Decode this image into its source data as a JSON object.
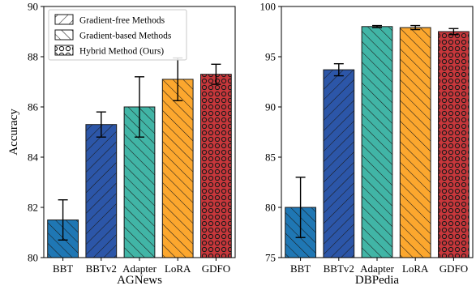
{
  "chart_data": [
    {
      "type": "bar",
      "xlabel": "AGNews",
      "ylabel": "Accuracy",
      "categories": [
        "BBT",
        "BBTv2",
        "Adapter",
        "LoRA",
        "GDFO"
      ],
      "values": [
        81.5,
        85.3,
        86.0,
        87.1,
        87.3
      ],
      "errors": [
        0.8,
        0.5,
        1.2,
        0.85,
        0.4
      ],
      "ylim": [
        80,
        90
      ],
      "yticks": [
        "80",
        "82",
        "84",
        "86",
        "88",
        "90"
      ],
      "legend": "top-left",
      "grid": false
    },
    {
      "type": "bar",
      "xlabel": "DBPedia",
      "ylabel": "",
      "categories": [
        "BBT",
        "BBTv2",
        "Adapter",
        "LoRA",
        "GDFO"
      ],
      "values": [
        80.0,
        93.7,
        98.0,
        97.9,
        97.5
      ],
      "errors": [
        3.0,
        0.6,
        0.1,
        0.2,
        0.3
      ],
      "ylim": [
        75,
        100
      ],
      "yticks": [
        "75",
        "80",
        "85",
        "90",
        "95",
        "100"
      ],
      "grid": false
    }
  ],
  "bar_colors": [
    "#1f77b4",
    "#2c56a8",
    "#41b5a6",
    "#fca72e",
    "#c7373b"
  ],
  "bar_hatches": [
    "backslash",
    "slash",
    "backslash",
    "backslash",
    "circles"
  ],
  "legend": {
    "entries": [
      {
        "label": "Gradient-free Methods",
        "hatch": "slash"
      },
      {
        "label": "Gradient-based Methods",
        "hatch": "backslash"
      },
      {
        "label": "Hybrid Method (Ours)",
        "hatch": "circles"
      }
    ]
  }
}
